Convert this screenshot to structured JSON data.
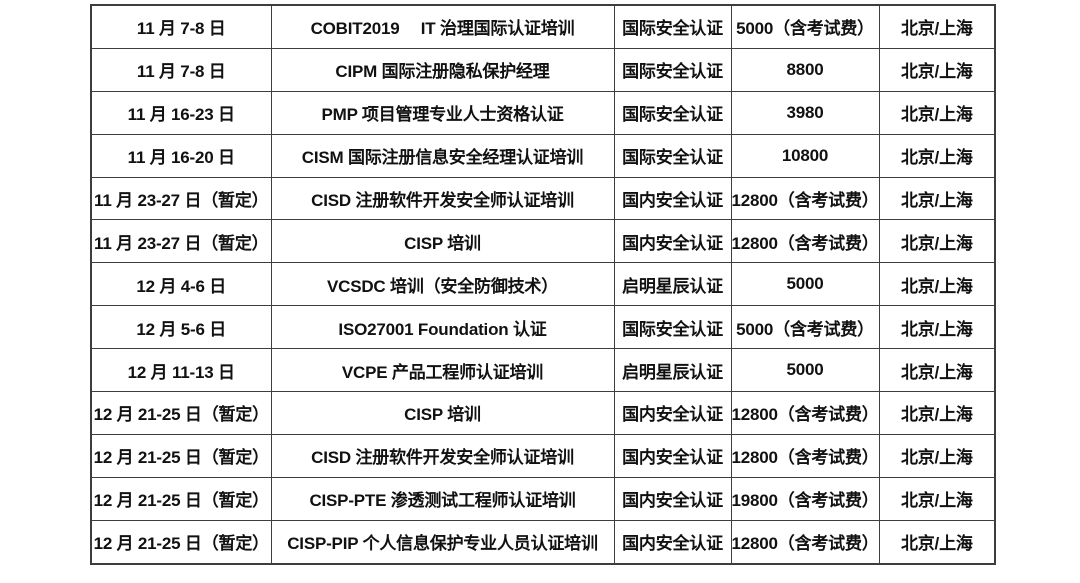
{
  "colors": {
    "border": "#3d3d3d",
    "text": "#111111",
    "background": "#ffffff"
  },
  "table": {
    "description": "training-schedule-table",
    "rows": [
      {
        "date": "11 月 7-8 日",
        "course": "COBIT2019　 IT 治理国际认证培训",
        "certification": "国际安全认证",
        "price": "5000（含考试费）",
        "location": "北京/上海"
      },
      {
        "date": "11 月 7-8 日",
        "course": "CIPM 国际注册隐私保护经理",
        "certification": "国际安全认证",
        "price": "8800",
        "location": "北京/上海"
      },
      {
        "date": "11 月 16-23 日",
        "course": "PMP 项目管理专业人士资格认证",
        "certification": "国际安全认证",
        "price": "3980",
        "location": "北京/上海"
      },
      {
        "date": "11 月 16-20 日",
        "course": "CISM 国际注册信息安全经理认证培训",
        "certification": "国际安全认证",
        "price": "10800",
        "location": "北京/上海"
      },
      {
        "date": "11 月 23-27 日（暂定）",
        "course": "CISD 注册软件开发安全师认证培训",
        "certification": "国内安全认证",
        "price": "12800（含考试费）",
        "location": "北京/上海"
      },
      {
        "date": "11 月 23-27 日（暂定）",
        "course": "CISP 培训",
        "certification": "国内安全认证",
        "price": "12800（含考试费）",
        "location": "北京/上海"
      },
      {
        "date": "12 月 4-6 日",
        "course": "VCSDC 培训（安全防御技术）",
        "certification": "启明星辰认证",
        "price": "5000",
        "location": "北京/上海"
      },
      {
        "date": "12 月 5-6 日",
        "course": "ISO27001 Foundation 认证",
        "certification": "国际安全认证",
        "price": "5000（含考试费）",
        "location": "北京/上海"
      },
      {
        "date": "12 月 11-13 日",
        "course": "VCPE 产品工程师认证培训",
        "certification": "启明星辰认证",
        "price": "5000",
        "location": "北京/上海"
      },
      {
        "date": "12 月 21-25 日（暂定）",
        "course": "CISP 培训",
        "certification": "国内安全认证",
        "price": "12800（含考试费）",
        "location": "北京/上海"
      },
      {
        "date": "12 月 21-25 日（暂定）",
        "course": "CISD 注册软件开发安全师认证培训",
        "certification": "国内安全认证",
        "price": "12800（含考试费）",
        "location": "北京/上海"
      },
      {
        "date": "12 月 21-25 日（暂定）",
        "course": "CISP-PTE 渗透测试工程师认证培训",
        "certification": "国内安全认证",
        "price": "19800（含考试费）",
        "location": "北京/上海"
      },
      {
        "date": "12 月 21-25 日（暂定）",
        "course": "CISP-PIP 个人信息保护专业人员认证培训",
        "certification": "国内安全认证",
        "price": "12800（含考试费）",
        "location": "北京/上海"
      }
    ]
  }
}
